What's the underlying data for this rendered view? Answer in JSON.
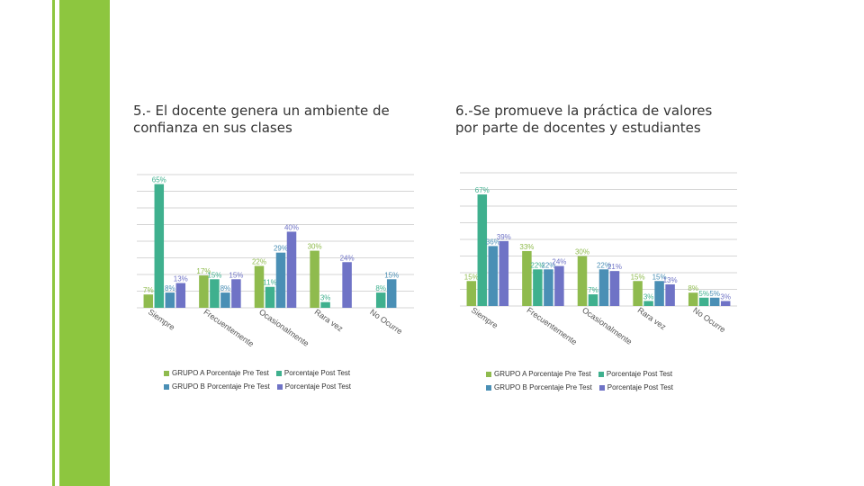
{
  "colors": {
    "accent": "#8dc63f",
    "grupo_a_pre": "#8fbb4e",
    "grupo_a_post": "#3fb08e",
    "grupo_b_pre": "#4a8fb5",
    "grupo_b_post": "#6f73c6"
  },
  "slide": {
    "title_left": "5.- El docente genera un ambiente de confianza en sus clases",
    "title_right": "6.-Se promueve la práctica de valores por parte de docentes y estudiantes"
  },
  "legend_left": {
    "a_pre": "GRUPO A Porcentaje Pre Test",
    "a_post": "Porcentaje Post Test",
    "b_pre": "GRUPO B Porcentaje Pre Test",
    "b_post": "Porcentaje Post Test"
  },
  "legend_right": {
    "a_pre": "GRUPO A Porcentaje Pre Test",
    "a_post": "Porcentaje Post Test",
    "b_pre": "GRUPO B Porcentaje Pre Test",
    "b_post": "Porcentaje Post Test"
  },
  "chart_data": [
    {
      "type": "bar",
      "title": "5.- El docente genera un ambiente de confianza en sus clases",
      "categories": [
        "Siempre",
        "Frecuentemente",
        "Ocasionalmente",
        "Rara vez",
        "No Ocurre"
      ],
      "ylim": [
        0,
        70
      ],
      "grid": true,
      "legend_position": "bottom",
      "series": [
        {
          "name": "GRUPO A Porcentaje Pre Test",
          "color": "#8fbb4e",
          "values": [
            7,
            17,
            22,
            30,
            0
          ],
          "labels": [
            "7%",
            "17%",
            "22%",
            "30%",
            ""
          ]
        },
        {
          "name": "Porcentaje Post Test",
          "color": "#3fb08e",
          "values": [
            65,
            15,
            11,
            3,
            8
          ],
          "labels": [
            "65%",
            "15%",
            "11%",
            "3%",
            "8%"
          ]
        },
        {
          "name": "GRUPO B Porcentaje Pre Test",
          "color": "#4a8fb5",
          "values": [
            8,
            8,
            29,
            0,
            15
          ],
          "labels": [
            "8%",
            "8%",
            "29%",
            "",
            "15%"
          ]
        },
        {
          "name": "Porcentaje Post Test",
          "color": "#6f73c6",
          "values": [
            13,
            15,
            40,
            24,
            0
          ],
          "labels": [
            "13%",
            "15%",
            "40%",
            "24%",
            ""
          ]
        }
      ]
    },
    {
      "type": "bar",
      "title": "6.-Se promueve la práctica de valores por parte de docentes y estudiantes",
      "categories": [
        "Siempre",
        "Frecuentemente",
        "Ocasionalmente",
        "Rara vez",
        "No Ocurre"
      ],
      "ylim": [
        0,
        80
      ],
      "grid": true,
      "legend_position": "bottom",
      "series": [
        {
          "name": "GRUPO A Porcentaje Pre Test",
          "color": "#8fbb4e",
          "values": [
            15,
            33,
            30,
            15,
            8
          ],
          "labels": [
            "15%",
            "33%",
            "30%",
            "15%",
            "8%"
          ]
        },
        {
          "name": "Porcentaje Post Test",
          "color": "#3fb08e",
          "values": [
            67,
            22,
            7,
            3,
            5
          ],
          "labels": [
            "67%",
            "22%",
            "7%",
            "3%",
            "5%"
          ]
        },
        {
          "name": "GRUPO B Porcentaje Pre Test",
          "color": "#4a8fb5",
          "values": [
            36,
            22,
            22,
            15,
            5
          ],
          "labels": [
            "36%",
            "22%",
            "22%",
            "15%",
            "5%"
          ]
        },
        {
          "name": "Porcentaje Post Test",
          "color": "#6f73c6",
          "values": [
            39,
            24,
            21,
            13,
            3
          ],
          "labels": [
            "39%",
            "24%",
            "21%",
            "13%",
            "3%"
          ]
        }
      ]
    }
  ]
}
